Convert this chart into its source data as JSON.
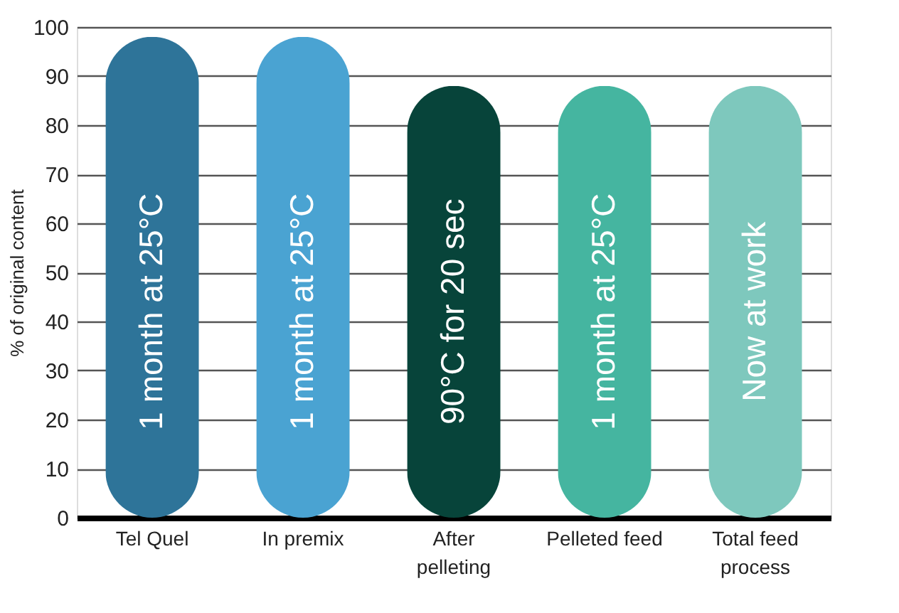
{
  "chart_data": {
    "type": "bar",
    "ylabel": "% of original content",
    "categories": [
      "Tel Quel",
      "In premix",
      "After\npelleting",
      "Pelleted feed",
      "Total feed\nprocess"
    ],
    "values": [
      98,
      98,
      88,
      88,
      88
    ],
    "colors": [
      "#2e7499",
      "#4aa3d2",
      "#07443a",
      "#45b5a0",
      "#7ec8bd"
    ],
    "ylim": [
      0,
      100
    ],
    "yticks": [
      0,
      10,
      20,
      30,
      40,
      50,
      60,
      70,
      80,
      90,
      100
    ],
    "grid": "y",
    "annotations": [
      "1 month at 25°C",
      "1 month at 25°C",
      "90°C for 20 sec",
      "1 month at 25°C",
      "Now at work"
    ]
  }
}
